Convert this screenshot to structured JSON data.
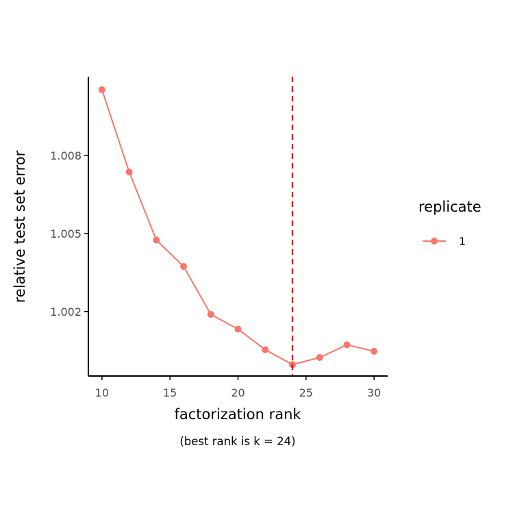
{
  "chart_data": {
    "type": "line",
    "xlabel": "factorization rank",
    "ylabel": "relative test set error",
    "caption": "(best rank is k = 24)",
    "x": [
      10,
      12,
      14,
      16,
      18,
      20,
      22,
      24,
      26,
      28,
      30
    ],
    "series": [
      {
        "name": "1",
        "values": [
          1.01052,
          1.00736,
          1.00474,
          1.00373,
          1.00189,
          1.00132,
          1.00053,
          0.99996,
          1.00023,
          1.00072,
          1.00047
        ]
      }
    ],
    "x_ticks": [
      10,
      15,
      20,
      25,
      30
    ],
    "x_tick_labels": [
      "10",
      "15",
      "20",
      "25",
      "30"
    ],
    "y_ticks": [
      1.002,
      1.005,
      1.008
    ],
    "y_tick_labels": [
      "1.002",
      "1.005",
      "1.008"
    ],
    "xlim": [
      9.0,
      31.0
    ],
    "ylim": [
      0.99952,
      1.01102
    ],
    "vline": {
      "x": 24,
      "style": "dashed",
      "color": "#e00000"
    },
    "legend": {
      "title": "replicate",
      "placement": "right"
    },
    "grid": false,
    "colors": {
      "series": "#f8766d",
      "axis": "#000000"
    }
  }
}
